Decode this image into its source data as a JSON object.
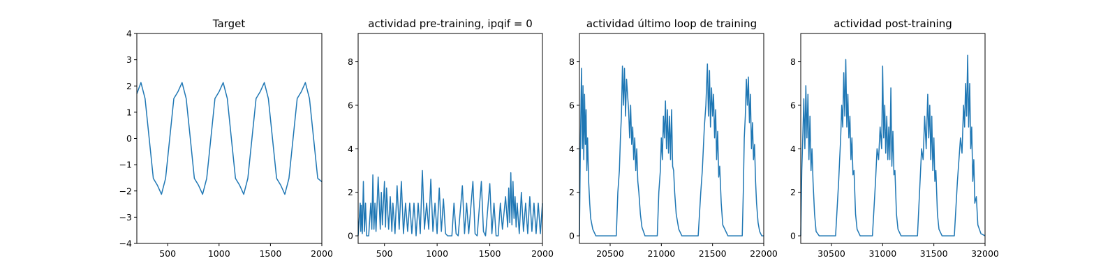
{
  "colors": {
    "series": "#1f77b4",
    "axes": "#000000",
    "background": "#ffffff"
  },
  "chart_data": [
    {
      "type": "line",
      "title": "Target",
      "xlabel": "",
      "ylabel": "",
      "xlim": [
        200,
        2000
      ],
      "ylim": [
        -4,
        4
      ],
      "x_ticks": [
        500,
        1000,
        1500,
        2000
      ],
      "y_ticks": [
        -4,
        -3,
        -2,
        -1,
        0,
        1,
        2,
        3,
        4
      ],
      "grid": false,
      "x": [
        200,
        240,
        280,
        320,
        360,
        400,
        440,
        480,
        520,
        560,
        600,
        640,
        680,
        720,
        760,
        800,
        840,
        880,
        920,
        960,
        1000,
        1040,
        1080,
        1120,
        1160,
        1200,
        1240,
        1280,
        1320,
        1360,
        1400,
        1440,
        1480,
        1520,
        1560,
        1600,
        1640,
        1680,
        1720,
        1760,
        1800,
        1840,
        1880,
        1920,
        1960,
        2000
      ],
      "y": [
        1.7,
        2.13,
        1.52,
        0,
        -1.52,
        -1.78,
        -2.13,
        -1.52,
        0,
        1.52,
        1.78,
        2.13,
        1.52,
        0,
        -1.52,
        -1.78,
        -2.13,
        -1.52,
        0,
        1.52,
        1.78,
        2.13,
        1.52,
        0,
        -1.52,
        -1.78,
        -2.13,
        -1.52,
        0,
        1.52,
        1.78,
        2.13,
        1.52,
        0,
        -1.52,
        -1.78,
        -2.13,
        -1.52,
        0,
        1.52,
        1.78,
        2.13,
        1.52,
        0,
        -1.52,
        -1.65
      ]
    },
    {
      "type": "line",
      "title": "actividad pre-training, ipqif = 0",
      "xlabel": "",
      "ylabel": "",
      "xlim": [
        250,
        2000
      ],
      "ylim": [
        -0.35,
        9.3
      ],
      "x_ticks": [
        500,
        1000,
        1500,
        2000
      ],
      "y_ticks": [
        0,
        2,
        4,
        6,
        8
      ],
      "grid": false,
      "x": [
        250,
        270,
        275,
        280,
        290,
        300,
        310,
        320,
        330,
        350,
        370,
        380,
        390,
        400,
        410,
        420,
        440,
        460,
        470,
        480,
        500,
        510,
        520,
        540,
        555,
        570,
        580,
        600,
        620,
        640,
        660,
        680,
        700,
        720,
        740,
        760,
        780,
        800,
        820,
        840,
        860,
        880,
        900,
        920,
        940,
        960,
        980,
        1000,
        1020,
        1040,
        1060,
        1080,
        1100,
        1120,
        1140,
        1160,
        1180,
        1200,
        1240,
        1260,
        1280,
        1300,
        1340,
        1360,
        1380,
        1420,
        1440,
        1460,
        1500,
        1520,
        1540,
        1560,
        1580,
        1600,
        1620,
        1650,
        1670,
        1680,
        1690,
        1700,
        1710,
        1720,
        1730,
        1740,
        1750,
        1760,
        1780,
        1800,
        1820,
        1840,
        1860,
        1880,
        1900,
        1920,
        1940,
        1960,
        1980,
        2000
      ],
      "y": [
        0,
        1.5,
        0.2,
        1.4,
        0.1,
        2.5,
        0.2,
        1.5,
        0,
        0,
        1.5,
        0.3,
        2.8,
        0.3,
        1.5,
        0.2,
        2.7,
        0.3,
        2.0,
        0.5,
        2.5,
        0.4,
        2.2,
        0.3,
        1.8,
        0.2,
        1.5,
        0.1,
        2.3,
        0.3,
        2.5,
        0.1,
        1.5,
        0.2,
        1.5,
        0.1,
        1.5,
        0,
        1.5,
        0.1,
        3.0,
        0.3,
        1.5,
        0.3,
        2.6,
        0.2,
        1.5,
        0.1,
        2.2,
        0.2,
        1.7,
        0.1,
        0,
        0,
        0,
        1.5,
        0.1,
        0,
        2.3,
        0.1,
        1.5,
        0.1,
        2.5,
        0.1,
        0,
        2.5,
        0.2,
        0,
        2.4,
        0.1,
        1.5,
        0,
        0,
        1.5,
        0.3,
        1.8,
        0.4,
        2.2,
        0.6,
        2.9,
        0.5,
        2.5,
        0.8,
        1.8,
        0.4,
        1.5,
        0.1,
        2.0,
        0.2,
        1.5,
        0.1,
        1.8,
        0.2,
        1.5,
        0.1,
        1.5,
        0.1,
        1.5
      ]
    },
    {
      "type": "line",
      "title": "actividad último loop de training",
      "xlabel": "",
      "ylabel": "",
      "xlim": [
        20200,
        22000
      ],
      "ylim": [
        -0.35,
        9.3
      ],
      "x_ticks": [
        20500,
        21000,
        21500,
        22000
      ],
      "y_ticks": [
        0,
        2,
        4,
        6,
        8
      ],
      "grid": false,
      "x": [
        20200,
        20210,
        20215,
        20220,
        20228,
        20235,
        20242,
        20250,
        20258,
        20265,
        20272,
        20280,
        20290,
        20300,
        20310,
        20330,
        20360,
        20400,
        20440,
        20480,
        20520,
        20560,
        20575,
        20590,
        20600,
        20610,
        20620,
        20630,
        20640,
        20650,
        20660,
        20670,
        20680,
        20690,
        20700,
        20710,
        20720,
        20730,
        20740,
        20750,
        20760,
        20770,
        20780,
        20795,
        20810,
        20840,
        20880,
        20920,
        20960,
        20975,
        20990,
        21000,
        21010,
        21020,
        21030,
        21040,
        21050,
        21060,
        21070,
        21080,
        21090,
        21100,
        21110,
        21120,
        21130,
        21145,
        21170,
        21200,
        21260,
        21320,
        21360,
        21385,
        21400,
        21420,
        21435,
        21450,
        21460,
        21470,
        21480,
        21490,
        21500,
        21510,
        21520,
        21530,
        21540,
        21550,
        21560,
        21570,
        21585,
        21600,
        21650,
        21700,
        21750,
        21790,
        21800,
        21810,
        21820,
        21830,
        21840,
        21850,
        21860,
        21870,
        21880,
        21890,
        21900,
        21910,
        21920,
        21930,
        21945,
        21960,
        21980,
        22000
      ],
      "y": [
        0,
        4.5,
        6.0,
        7.7,
        4.0,
        6.9,
        3.5,
        6.5,
        4.2,
        5.8,
        3.0,
        4.5,
        2.5,
        1.5,
        0.8,
        0.3,
        0,
        0,
        0,
        0,
        0,
        0,
        2.0,
        3.0,
        4.5,
        5.5,
        7.8,
        6.0,
        7.7,
        5.5,
        7.2,
        6.5,
        5.8,
        4.5,
        6.0,
        4.2,
        5.0,
        3.5,
        4.5,
        3.0,
        4.0,
        2.5,
        2.0,
        1.0,
        0.4,
        0,
        0,
        0,
        0,
        2.0,
        3.0,
        4.5,
        3.5,
        5.5,
        4.5,
        6.2,
        4.0,
        5.8,
        3.8,
        5.5,
        3.5,
        5.8,
        3.2,
        3.0,
        2.0,
        1.0,
        0.3,
        0,
        0,
        0,
        0,
        2.0,
        3.0,
        5.0,
        6.0,
        7.9,
        5.5,
        7.6,
        5.0,
        6.8,
        5.5,
        6.5,
        4.5,
        5.8,
        3.5,
        4.8,
        2.7,
        3.2,
        1.5,
        0.5,
        0,
        0,
        0,
        0,
        2.0,
        4.5,
        5.5,
        7.2,
        6.0,
        7.3,
        5.2,
        6.5,
        4.0,
        5.2,
        3.5,
        4.2,
        2.5,
        1.5,
        0.6,
        0.2,
        0,
        0
      ]
    },
    {
      "type": "line",
      "title": "actividad post-training",
      "xlabel": "",
      "ylabel": "",
      "xlim": [
        30200,
        32000
      ],
      "ylim": [
        -0.35,
        9.3
      ],
      "x_ticks": [
        30500,
        31000,
        31500,
        32000
      ],
      "y_ticks": [
        0,
        2,
        4,
        6,
        8
      ],
      "grid": false,
      "x": [
        30200,
        30210,
        30220,
        30230,
        30240,
        30250,
        30260,
        30270,
        30280,
        30290,
        30300,
        30310,
        30320,
        30335,
        30350,
        30380,
        30420,
        30460,
        30500,
        30540,
        30570,
        30580,
        30590,
        30600,
        30610,
        30620,
        30630,
        30640,
        30650,
        30660,
        30670,
        30680,
        30690,
        30700,
        30710,
        30720,
        30735,
        30750,
        30780,
        30820,
        30860,
        30900,
        30930,
        30945,
        30960,
        30975,
        30990,
        31000,
        31010,
        31020,
        31030,
        31040,
        31050,
        31060,
        31070,
        31080,
        31090,
        31100,
        31110,
        31120,
        31135,
        31150,
        31180,
        31220,
        31260,
        31300,
        31340,
        31365,
        31380,
        31395,
        31410,
        31425,
        31440,
        31450,
        31460,
        31470,
        31480,
        31490,
        31500,
        31510,
        31520,
        31535,
        31550,
        31580,
        31620,
        31660,
        31700,
        31730,
        31745,
        31760,
        31775,
        31790,
        31800,
        31810,
        31820,
        31830,
        31840,
        31850,
        31860,
        31870,
        31880,
        31890,
        31900,
        31915,
        31930,
        31960,
        32000
      ],
      "y": [
        0,
        3.0,
        4.5,
        6.3,
        4.0,
        6.9,
        4.5,
        6.5,
        3.5,
        5.5,
        3.0,
        4.0,
        2.5,
        1.0,
        0.2,
        0,
        0,
        0,
        0,
        0,
        2.5,
        3.5,
        4.5,
        6.0,
        5.0,
        7.5,
        5.5,
        8.1,
        5.0,
        6.5,
        4.5,
        5.5,
        3.5,
        4.5,
        2.8,
        3.0,
        1.0,
        0.3,
        0,
        0,
        0,
        0,
        2.5,
        4.0,
        3.5,
        5.0,
        4.0,
        7.8,
        4.5,
        6.0,
        3.8,
        5.5,
        3.5,
        5.0,
        3.5,
        6.8,
        3.2,
        4.8,
        2.8,
        3.0,
        1.0,
        0.3,
        0,
        0,
        0,
        0,
        0,
        2.5,
        4.0,
        3.5,
        5.5,
        4.0,
        6.5,
        4.5,
        6.0,
        3.5,
        5.5,
        3.0,
        4.5,
        2.5,
        3.0,
        1.0,
        0.3,
        0,
        0,
        0,
        0,
        2.5,
        3.5,
        4.5,
        3.8,
        6.0,
        5.0,
        7.0,
        5.5,
        8.3,
        5.0,
        7.0,
        4.0,
        5.0,
        2.5,
        3.5,
        1.5,
        1.8,
        0.5,
        0.1,
        0
      ]
    }
  ]
}
